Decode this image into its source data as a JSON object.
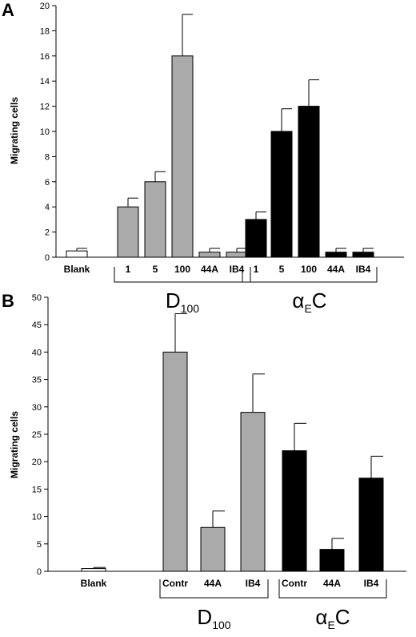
{
  "chart_data": [
    {
      "panel": "A",
      "type": "bar",
      "ylabel": "Migrating cells",
      "ylim": [
        0,
        20
      ],
      "yticks": [
        0,
        2,
        4,
        6,
        8,
        10,
        12,
        14,
        16,
        18,
        20
      ],
      "categories": [
        "Blank",
        "1",
        "5",
        "100",
        "44A",
        "IB4",
        "1",
        "5",
        "100",
        "44A",
        "IB4"
      ],
      "values": [
        0.5,
        4,
        6,
        16,
        0.4,
        0.4,
        3,
        10,
        12,
        0.4,
        0.4
      ],
      "errors": [
        0.2,
        0.7,
        0.8,
        3.3,
        0.3,
        0.3,
        0.6,
        1.8,
        2.1,
        0.3,
        0.3
      ],
      "colors": [
        "#ffffff",
        "#aaaaaa",
        "#aaaaaa",
        "#aaaaaa",
        "#aaaaaa",
        "#aaaaaa",
        "#000000",
        "#000000",
        "#000000",
        "#000000",
        "#000000"
      ],
      "groups": [
        {
          "label": "D",
          "sub": "100",
          "sub_position": "subscript",
          "from": 1,
          "to": 5
        },
        {
          "label": "α",
          "sub": "E",
          "suffix": "C",
          "from": 6,
          "to": 10
        }
      ],
      "grid": false,
      "legend": "none"
    },
    {
      "panel": "B",
      "type": "bar",
      "ylabel": "Migrating cells",
      "ylim": [
        0,
        50
      ],
      "yticks": [
        0,
        5,
        10,
        15,
        20,
        25,
        30,
        35,
        40,
        45,
        50
      ],
      "categories": [
        "Blank",
        "Contr",
        "44A",
        "IB4",
        "Contr",
        "44A",
        "IB4"
      ],
      "values": [
        0.5,
        40,
        8,
        29,
        22,
        4,
        17
      ],
      "errors": [
        0.2,
        7,
        3,
        7,
        5,
        2,
        4
      ],
      "colors": [
        "#ffffff",
        "#aaaaaa",
        "#aaaaaa",
        "#aaaaaa",
        "#000000",
        "#000000",
        "#000000"
      ],
      "groups": [
        {
          "label": "D",
          "sub": "100",
          "from": 1,
          "to": 3
        },
        {
          "label": "α",
          "sub": "E",
          "suffix": "C",
          "from": 4,
          "to": 6
        }
      ],
      "grid": false,
      "legend": "none"
    }
  ]
}
